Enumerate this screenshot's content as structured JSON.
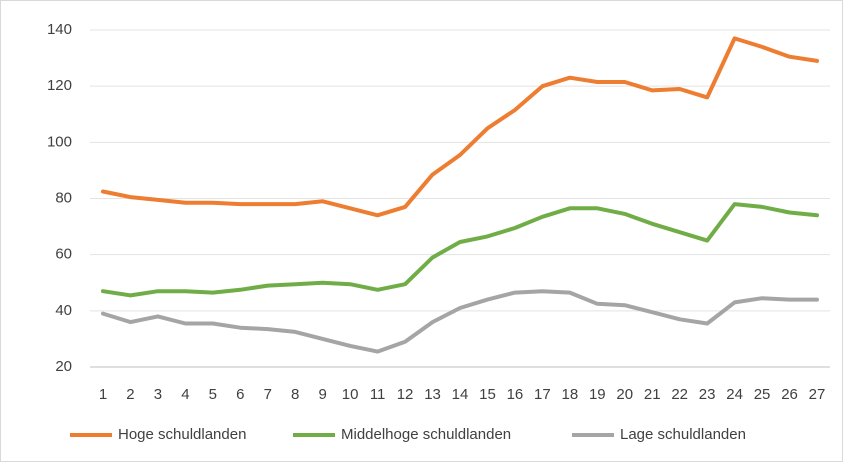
{
  "chart_data": {
    "type": "line",
    "categories": [
      "1",
      "2",
      "3",
      "4",
      "5",
      "6",
      "7",
      "8",
      "9",
      "10",
      "11",
      "12",
      "13",
      "14",
      "15",
      "16",
      "17",
      "18",
      "19",
      "20",
      "21",
      "22",
      "23",
      "24",
      "25",
      "26",
      "27"
    ],
    "series": [
      {
        "name": "Hoge schuldlanden",
        "color": "#ed7d31",
        "values": [
          82.5,
          80.5,
          79.5,
          78.5,
          78.5,
          78,
          78,
          78,
          79,
          76.5,
          74,
          77,
          88.5,
          95.5,
          105,
          111.5,
          120,
          123,
          121.5,
          121.5,
          118.5,
          119,
          116,
          137,
          134,
          130.5,
          129
        ]
      },
      {
        "name": "Middelhoge schuldlanden",
        "color": "#70ad47",
        "values": [
          47,
          45.5,
          47,
          47,
          46.5,
          47.5,
          49,
          49.5,
          50,
          49.5,
          47.5,
          49.5,
          59,
          64.5,
          66.5,
          69.5,
          73.5,
          76.5,
          76.5,
          74.5,
          71,
          68,
          65,
          78,
          77,
          75,
          74
        ]
      },
      {
        "name": "Lage schuldlanden",
        "color": "#a5a5a5",
        "values": [
          39,
          36,
          38,
          35.5,
          35.5,
          34,
          33.5,
          32.5,
          30,
          27.5,
          25.5,
          29,
          36,
          41,
          44,
          46.5,
          47,
          46.5,
          42.5,
          42,
          39.5,
          37,
          35.5,
          43,
          44.5,
          44,
          44
        ]
      }
    ],
    "ylim": [
      20,
      140
    ],
    "yticks": [
      20,
      40,
      60,
      80,
      100,
      120,
      140
    ],
    "grid": true,
    "legend": "bottom"
  }
}
